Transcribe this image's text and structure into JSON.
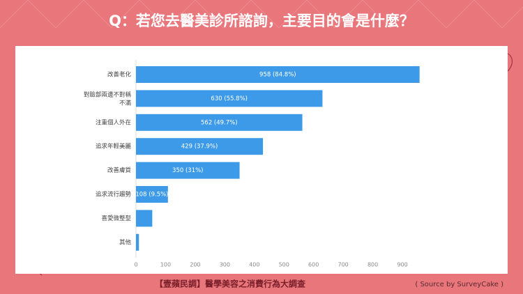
{
  "header": {
    "title": "Q：若您去醫美診所諮詢，主要目的會是什麼？"
  },
  "chart_data": {
    "type": "bar",
    "orientation": "horizontal",
    "categories": [
      "改善老化",
      "對臉部兩邊不對稱不滿",
      "注重個人外在",
      "追求年輕美麗",
      "改善膚質",
      "追求流行趨勢",
      "喜愛微整型",
      "其他"
    ],
    "values": [
      958,
      630,
      562,
      429,
      350,
      108,
      55,
      10
    ],
    "value_labels": [
      "958 (84.8%)",
      "630 (55.8%)",
      "562 (49.7%)",
      "429 (37.9%)",
      "350 (31%)",
      "108 (9.5%)",
      null,
      null
    ],
    "color": "#3d9ae8",
    "xlim": [
      0,
      980
    ],
    "xticks": [
      0,
      100,
      200,
      300,
      400,
      500,
      600,
      700,
      800,
      900
    ],
    "grid": false
  },
  "footer": {
    "title": "【壹蘋民調】醫學美容之消費行為大調查",
    "source": "( Source by SurveyCake )"
  }
}
